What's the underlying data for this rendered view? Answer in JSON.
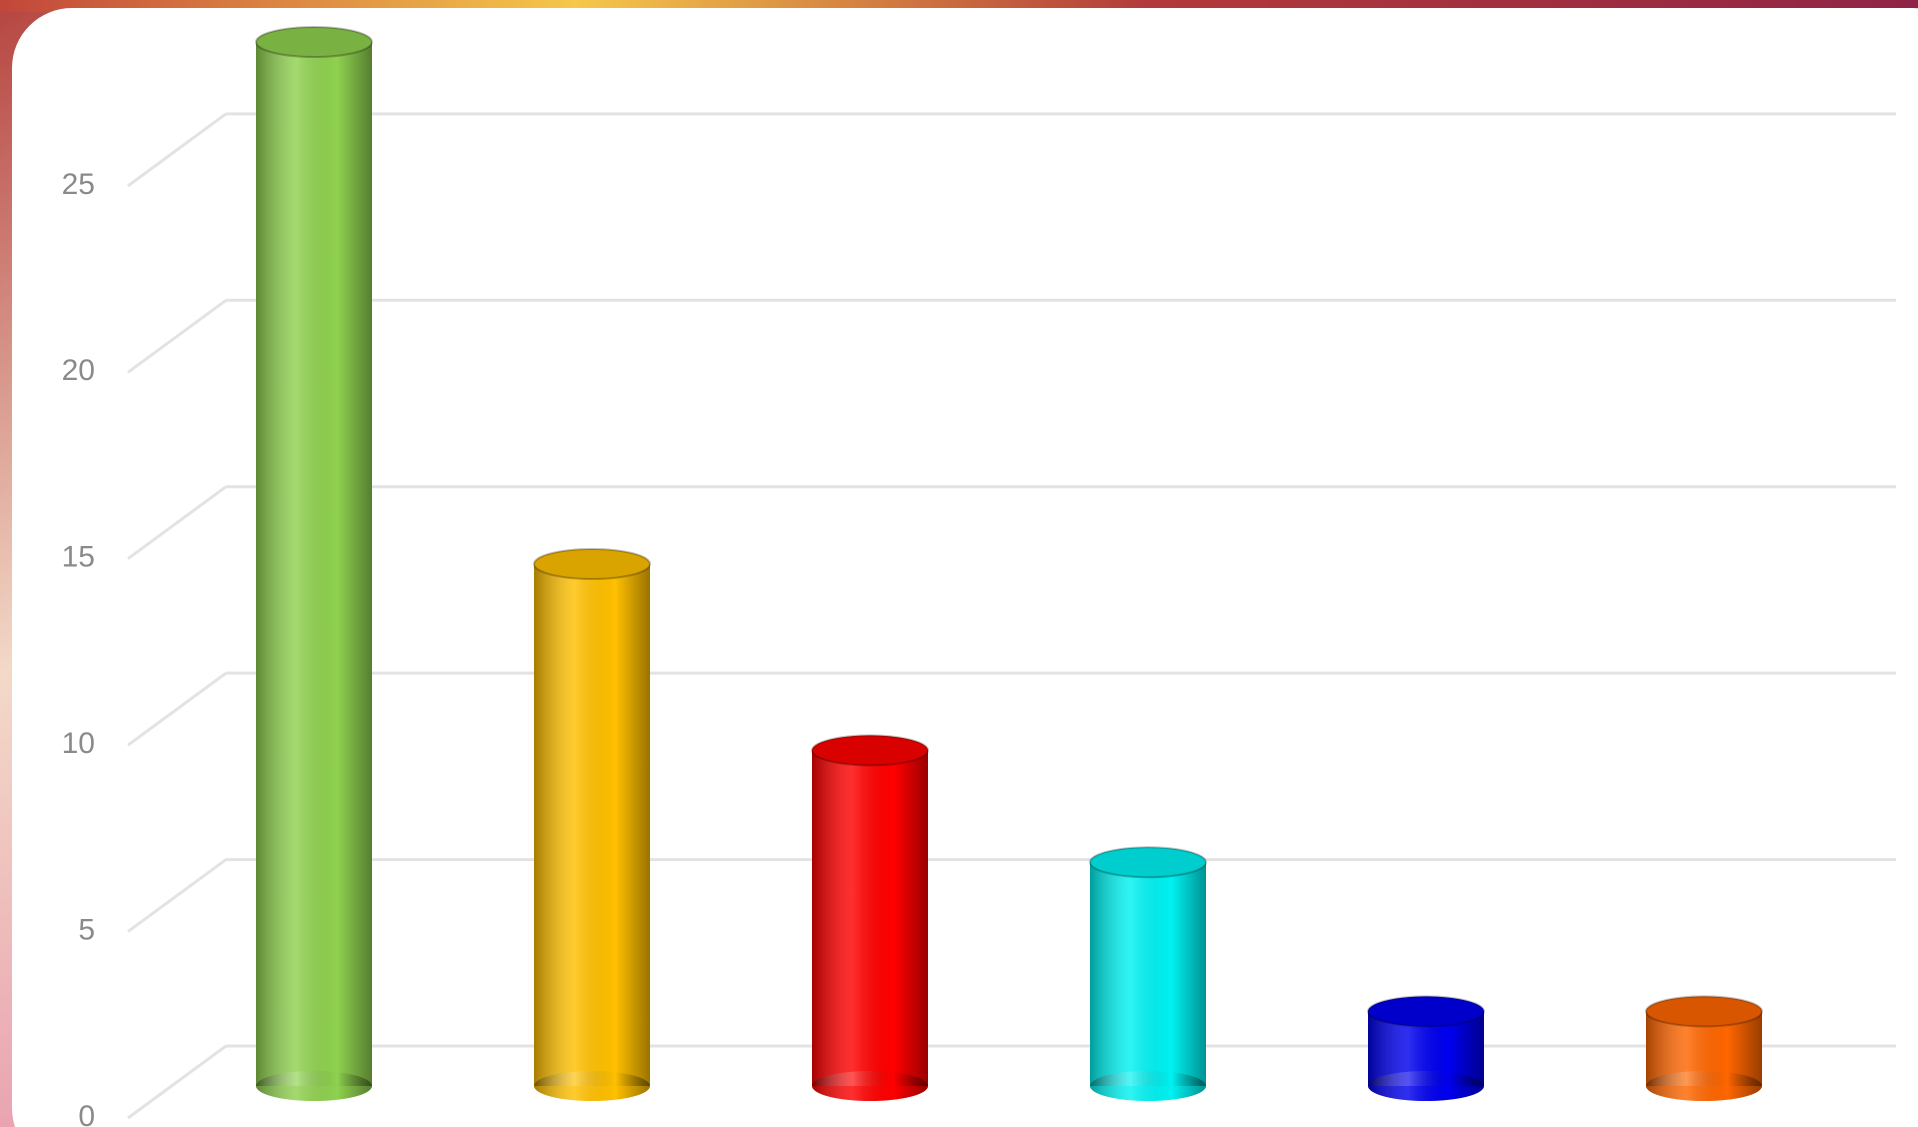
{
  "chart_data": {
    "type": "bar",
    "categories": [
      null,
      null,
      null,
      null,
      null,
      null
    ],
    "values": [
      28,
      14,
      9,
      6,
      2,
      2
    ],
    "colors": [
      "#8fd14f",
      "#ffc000",
      "#ff0000",
      "#00f2f2",
      "#0000ee",
      "#ff6600"
    ],
    "ylim": [
      0,
      28
    ],
    "yticks": [
      0,
      5,
      10,
      15,
      20,
      25
    ],
    "grid": true
  }
}
